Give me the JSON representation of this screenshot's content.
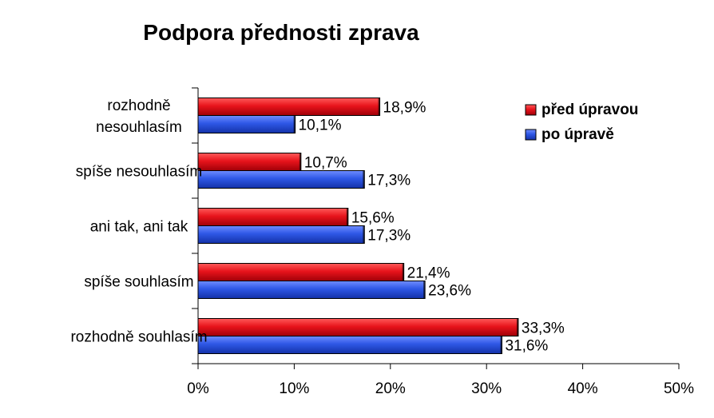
{
  "chart_data": {
    "type": "bar",
    "orientation": "horizontal",
    "title": "Podpora přednosti zprava",
    "categories": [
      [
        "rozhodně",
        "nesouhlasím"
      ],
      [
        "spíše nesouhlasím"
      ],
      [
        "ani tak, ani tak"
      ],
      [
        "spíše souhlasím"
      ],
      [
        "rozhodně souhlasím"
      ]
    ],
    "series": [
      {
        "name": "před úpravou",
        "color": "#e8141c",
        "values": [
          18.9,
          10.7,
          15.6,
          21.4,
          33.3
        ],
        "labels": [
          "18,9%",
          "10,7%",
          "15,6%",
          "21,4%",
          "33,3%"
        ]
      },
      {
        "name": "po úpravě",
        "color": "#2e57e6",
        "values": [
          10.1,
          17.3,
          17.3,
          23.6,
          31.6
        ],
        "labels": [
          "10,1%",
          "17,3%",
          "17,3%",
          "23,6%",
          "31,6%"
        ]
      }
    ],
    "xlim": [
      0,
      50
    ],
    "xticks": [
      0,
      10,
      20,
      30,
      40,
      50
    ],
    "xtick_labels": [
      "0%",
      "10%",
      "20%",
      "30%",
      "40%",
      "50%"
    ],
    "xlabel": "",
    "ylabel": "",
    "grid": false,
    "legend_position": "top-right"
  }
}
